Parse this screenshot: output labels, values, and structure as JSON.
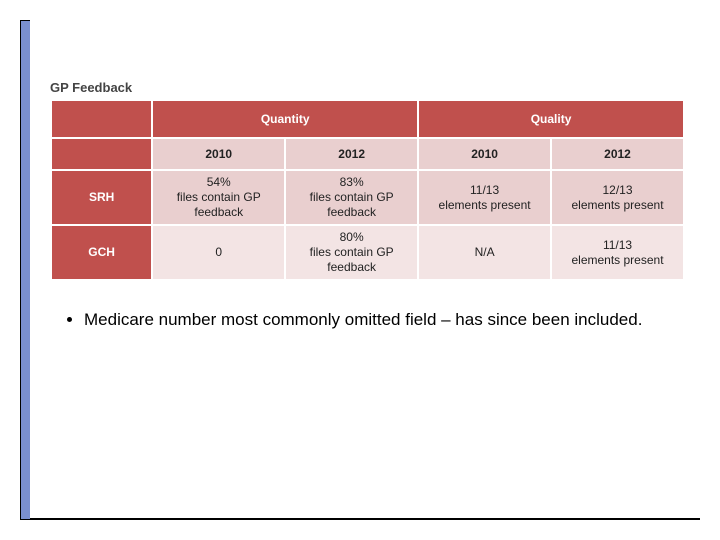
{
  "heading": "GP Feedback",
  "table": {
    "colgroup_header": [
      "Quantity",
      "Quality"
    ],
    "year_headers": [
      "2010",
      "2012",
      "2010",
      "2012"
    ],
    "rows": [
      {
        "label": "SRH",
        "cells": [
          "54%\nfiles contain GP\nfeedback",
          "83%\nfiles contain GP\nfeedback",
          "11/13\nelements present",
          "12/13\nelements present"
        ]
      },
      {
        "label": "GCH",
        "cells": [
          "0",
          "80%\nfiles contain GP\nfeedback",
          "N/A",
          "11/13\nelements present"
        ]
      }
    ],
    "colors": {
      "header_bg": "#c0504d",
      "header_fg": "#ffffff",
      "band_a": "#e9cfcf",
      "band_b": "#f3e4e4",
      "border": "#ffffff"
    }
  },
  "bullet": "Medicare number most commonly omitted field – has since been included.",
  "accent_color": "#7a8fd0"
}
